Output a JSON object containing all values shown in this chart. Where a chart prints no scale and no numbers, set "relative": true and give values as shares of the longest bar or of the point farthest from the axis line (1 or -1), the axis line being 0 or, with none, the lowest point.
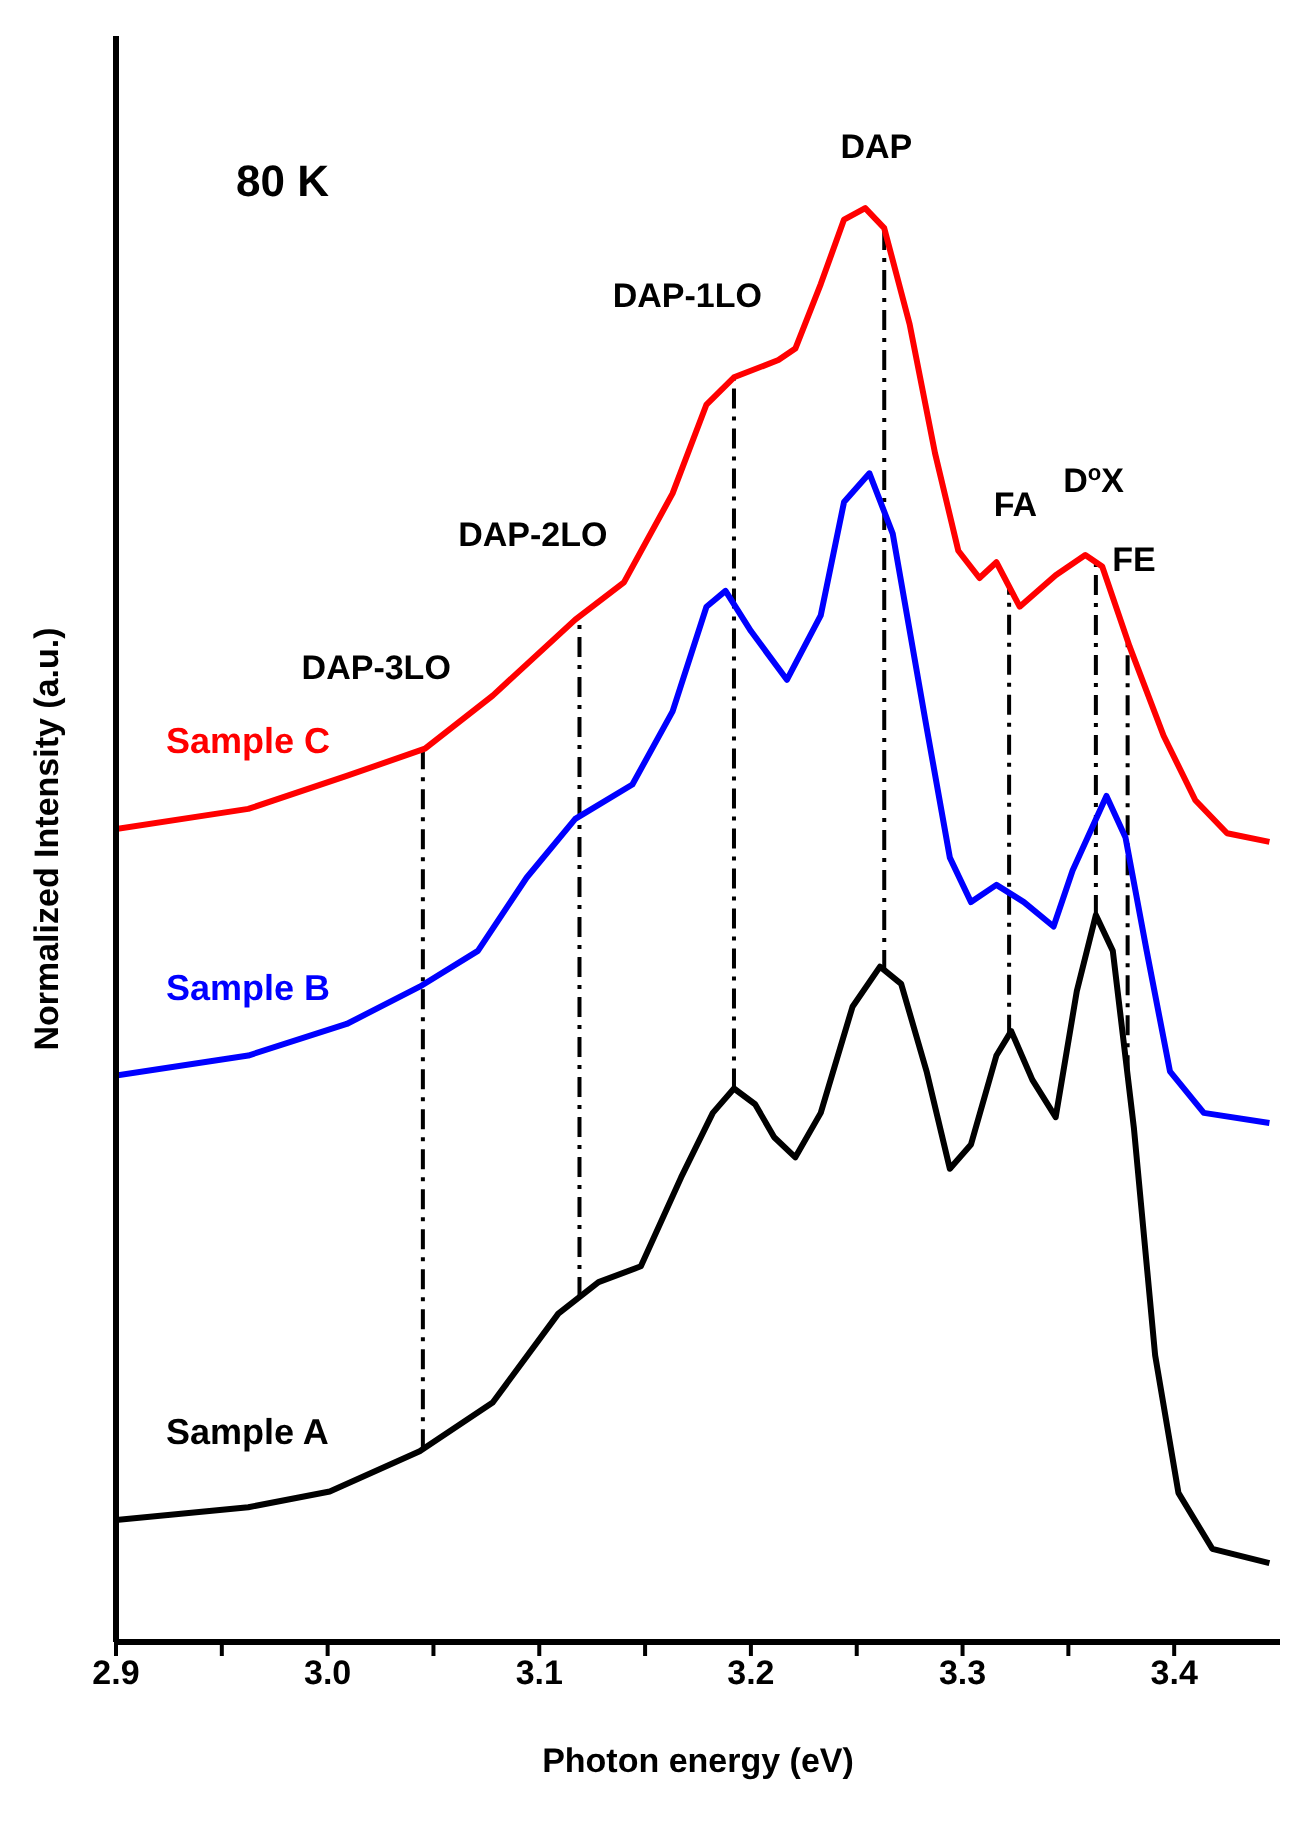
{
  "chart_data": {
    "type": "line",
    "relative": true,
    "xlabel": "Photon energy (eV)",
    "ylabel": "Normalized Intensity (a.u.)",
    "annotations": [
      "80 K"
    ],
    "xlim": [
      2.9,
      3.45
    ],
    "xticks": [
      2.9,
      {
        "value": 2.95,
        "label": null
      },
      {
        "value": 3.0,
        "label": "3.0"
      },
      {
        "value": 3.05,
        "label": null
      },
      3.1,
      {
        "value": 3.15,
        "label": null
      },
      3.2,
      {
        "value": 3.25,
        "label": null
      },
      3.3,
      {
        "value": 3.35,
        "label": null
      },
      3.4
    ],
    "marker": "none",
    "line_style": "solid",
    "ref_lines": [
      {
        "axis": "x",
        "value": 3.045,
        "label": "DAP-3LO",
        "line_style": "dashdot",
        "color": "#000000"
      },
      {
        "axis": "x",
        "value": 3.119,
        "label": "DAP-2LO",
        "line_style": "dashdot",
        "color": "#000000"
      },
      {
        "axis": "x",
        "value": 3.192,
        "label": "DAP-1LO",
        "line_style": "dashdot",
        "color": "#000000"
      },
      {
        "axis": "x",
        "value": 3.263,
        "label": "DAP",
        "line_style": "dashdot",
        "color": "#000000"
      },
      {
        "axis": "x",
        "value": 3.322,
        "label": "FA",
        "line_style": "dashdot",
        "color": "#000000"
      },
      {
        "axis": "x",
        "value": 3.363,
        "label": "D$^{o}$X",
        "line_style": "dashdot",
        "color": "#000000"
      },
      {
        "axis": "x",
        "value": 3.378,
        "label": "FE",
        "line_style": "dashdot",
        "color": "#000000"
      }
    ],
    "series": [
      {
        "name": "Sample C",
        "color": "#ff0000",
        "x": [
          2.9,
          2.9625,
          3.009,
          3.046,
          3.078,
          3.117,
          3.14,
          3.163,
          3.179,
          3.192,
          3.213,
          3.221,
          3.233,
          3.244,
          3.254,
          3.263,
          3.275,
          3.287,
          3.298,
          3.308,
          3.316,
          3.327,
          3.344,
          3.358,
          3.366,
          3.379,
          3.395,
          3.41,
          3.425,
          3.445
        ],
        "values": [
          0.567,
          0.581,
          0.604,
          0.623,
          0.66,
          0.713,
          0.739,
          0.801,
          0.863,
          0.882,
          0.894,
          0.902,
          0.947,
          0.992,
          1.0,
          0.986,
          0.919,
          0.829,
          0.761,
          0.742,
          0.753,
          0.722,
          0.744,
          0.758,
          0.75,
          0.694,
          0.632,
          0.587,
          0.564,
          0.558
        ]
      },
      {
        "name": "Sample B",
        "color": "#0000ff",
        "x": [
          2.9,
          2.9625,
          3.009,
          3.0435,
          3.071,
          3.094,
          3.117,
          3.144,
          3.163,
          3.179,
          3.188,
          3.2,
          3.217,
          3.233,
          3.244,
          3.256,
          3.267,
          3.283,
          3.294,
          3.304,
          3.316,
          3.329,
          3.343,
          3.352,
          3.368,
          3.377,
          3.387,
          3.398,
          3.414,
          3.445
        ],
        "values": [
          0.395,
          0.409,
          0.431,
          0.457,
          0.482,
          0.533,
          0.574,
          0.598,
          0.649,
          0.722,
          0.733,
          0.705,
          0.671,
          0.716,
          0.795,
          0.815,
          0.773,
          0.638,
          0.547,
          0.516,
          0.528,
          0.516,
          0.499,
          0.538,
          0.59,
          0.561,
          0.482,
          0.398,
          0.369,
          0.362
        ]
      },
      {
        "name": "Sample A",
        "color": "#000000",
        "x": [
          2.9,
          2.9625,
          3.001,
          3.0435,
          3.078,
          3.109,
          3.128,
          3.148,
          3.167,
          3.182,
          3.192,
          3.202,
          3.211,
          3.221,
          3.233,
          3.248,
          3.261,
          3.271,
          3.283,
          3.294,
          3.304,
          3.316,
          3.323,
          3.333,
          3.344,
          3.354,
          3.363,
          3.371,
          3.381,
          3.391,
          3.402,
          3.418,
          3.445
        ],
        "values": [
          0.085,
          0.094,
          0.105,
          0.133,
          0.167,
          0.229,
          0.251,
          0.262,
          0.324,
          0.369,
          0.386,
          0.375,
          0.352,
          0.338,
          0.369,
          0.443,
          0.471,
          0.459,
          0.398,
          0.33,
          0.347,
          0.409,
          0.426,
          0.392,
          0.366,
          0.454,
          0.507,
          0.482,
          0.358,
          0.2,
          0.104,
          0.065,
          0.055
        ]
      }
    ]
  }
}
